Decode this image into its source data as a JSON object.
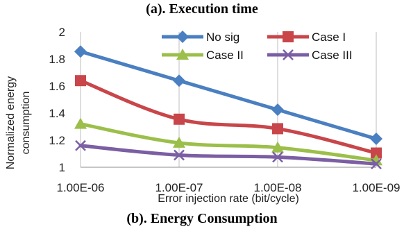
{
  "header": {
    "title": "(a). Execution time"
  },
  "footer": {
    "caption": "(b). Energy Consumption"
  },
  "chart_data": {
    "type": "line",
    "title": "",
    "xlabel": "Error injection rate (bit/cycle)",
    "ylabel": "Normalized energy consumption",
    "categories": [
      "1.00E-06",
      "1.00E-07",
      "1.00E-08",
      "1.00E-09"
    ],
    "ylim": [
      1,
      2
    ],
    "yticks": [
      "1",
      "1.2",
      "1.4",
      "1.6",
      "1.8",
      "2"
    ],
    "grid": "vertical",
    "legend": "top",
    "series": [
      {
        "name": "No sig",
        "values": [
          1.855,
          1.64,
          1.425,
          1.21
        ],
        "color": "#4a7fc1",
        "marker": "diamond"
      },
      {
        "name": "Case I",
        "values": [
          1.64,
          1.355,
          1.285,
          1.105
        ],
        "color": "#c8464a",
        "marker": "square"
      },
      {
        "name": "Case II",
        "values": [
          1.32,
          1.18,
          1.145,
          1.05
        ],
        "color": "#9bbf4a",
        "marker": "triangle"
      },
      {
        "name": "Case III",
        "values": [
          1.16,
          1.09,
          1.075,
          1.025
        ],
        "color": "#7b5ea3",
        "marker": "x"
      }
    ]
  }
}
